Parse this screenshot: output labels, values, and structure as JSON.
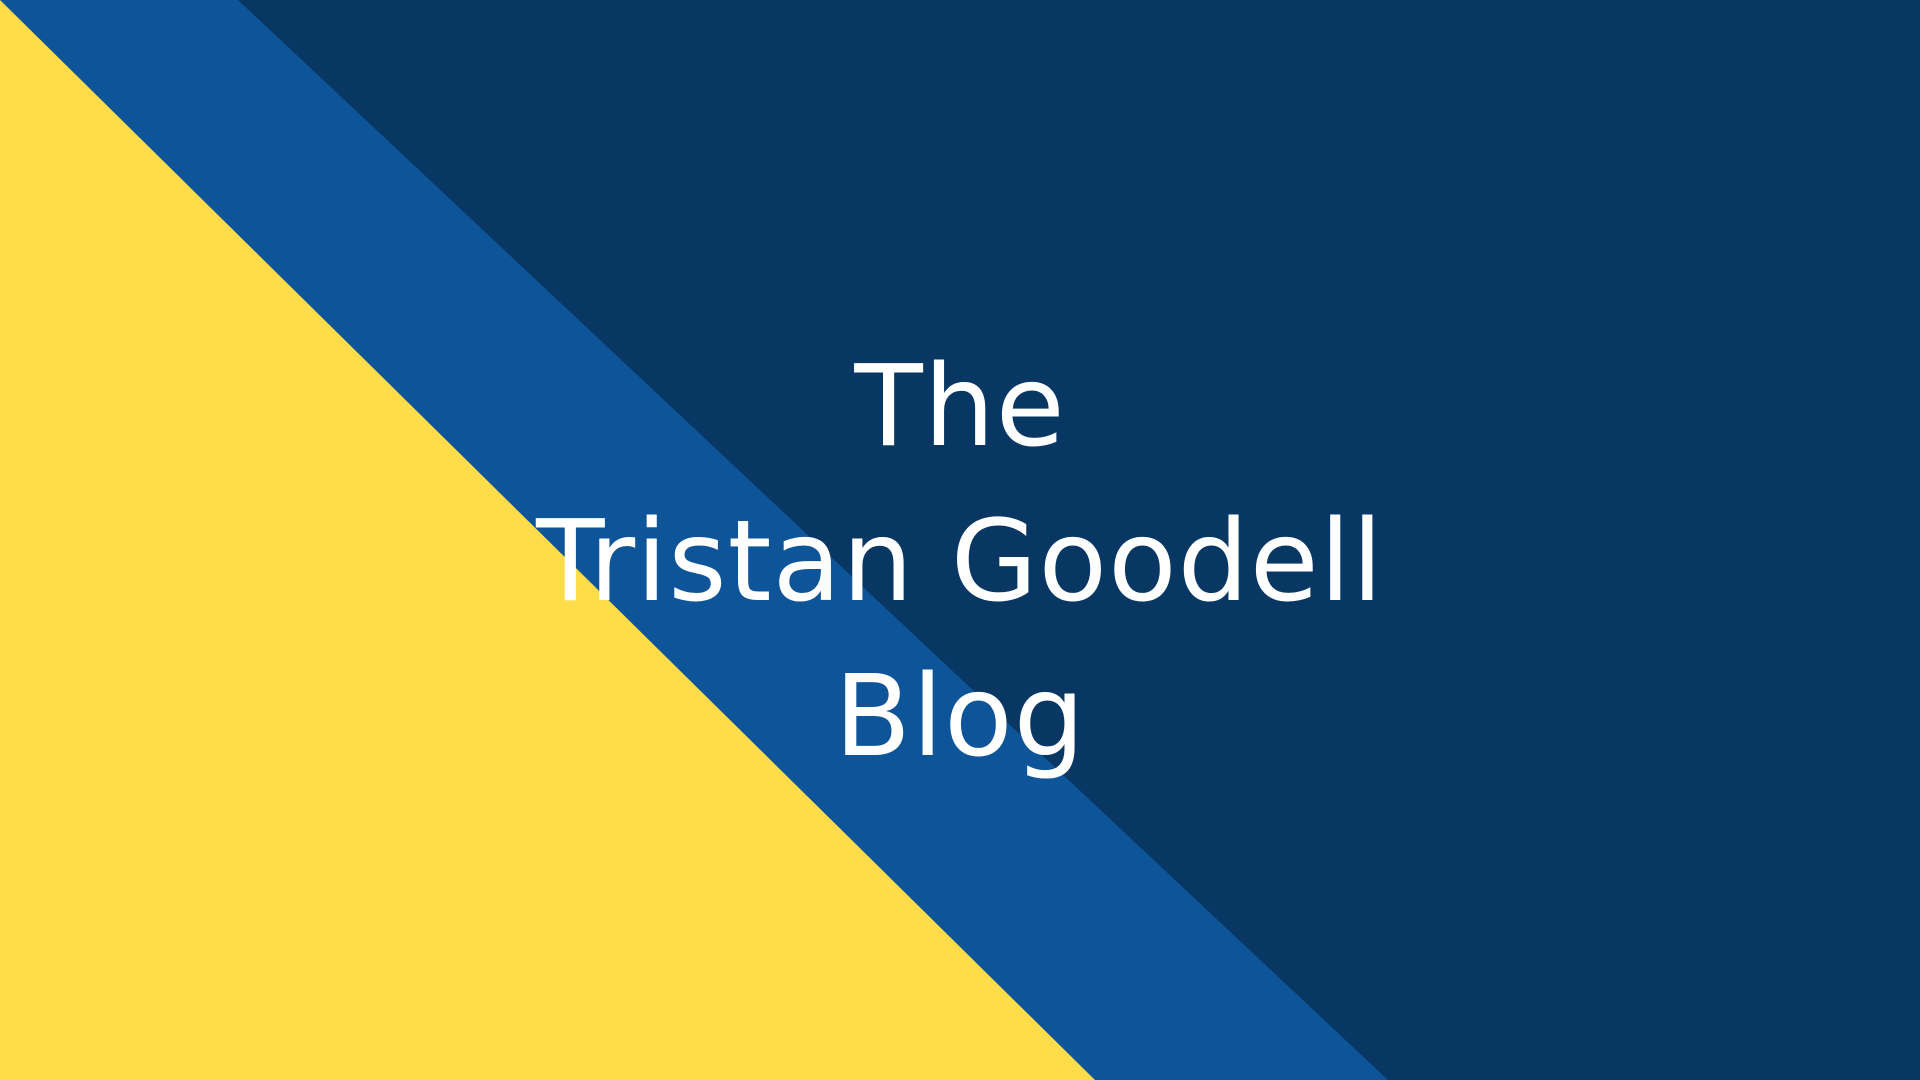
{
  "banner": {
    "title_lines": [
      "The",
      "Tristan Goodell",
      "Blog"
    ]
  },
  "colors": {
    "yellow": "#FFDC4A",
    "stripe_blue": "#0D5499",
    "navy": "#083764",
    "title_text": "#FFFFFF"
  }
}
